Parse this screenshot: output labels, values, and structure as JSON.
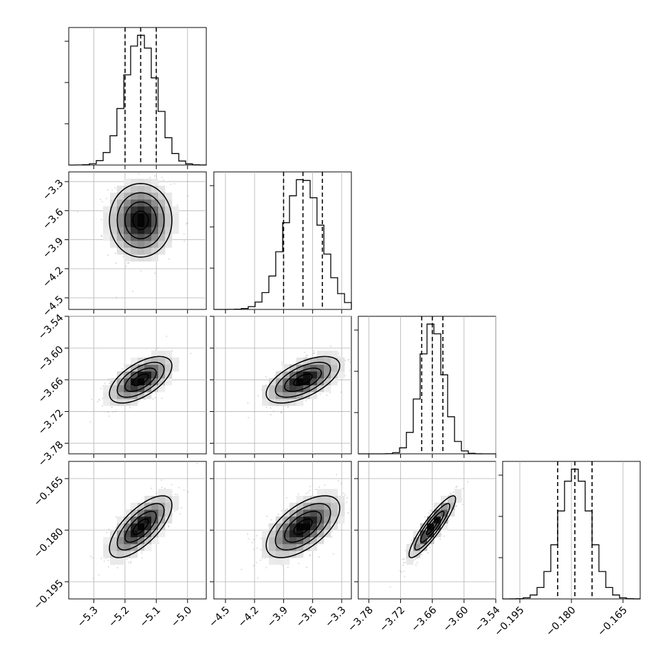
{
  "chart_data": {
    "type": "corner",
    "title": "",
    "grid": true,
    "parameters": [
      {
        "index": 0,
        "mean": -5.15,
        "sd": 0.05,
        "range": [
          -5.38,
          -4.94
        ],
        "ticks": [
          -5.3,
          -5.2,
          -5.1,
          -5.0
        ],
        "tick_labels": [
          "−5.3",
          "−5.2",
          "−5.1",
          "−5.0"
        ],
        "quantiles": [
          -5.2,
          -5.15,
          -5.1
        ]
      },
      {
        "index": 1,
        "mean": -3.7,
        "sd": 0.19,
        "range": [
          -4.62,
          -3.2
        ],
        "ticks": [
          -4.5,
          -4.2,
          -3.9,
          -3.6,
          -3.3
        ],
        "tick_labels": [
          "−4.5",
          "−4.2",
          "−3.9",
          "−3.6",
          "−3.3"
        ],
        "quantiles": [
          -3.9,
          -3.7,
          -3.5
        ]
      },
      {
        "index": 2,
        "mean": -3.66,
        "sd": 0.022,
        "range": [
          -3.8,
          -3.54
        ],
        "ticks": [
          -3.78,
          -3.72,
          -3.66,
          -3.6,
          -3.54
        ],
        "tick_labels": [
          "−3.78",
          "−3.72",
          "−3.66",
          "−3.60",
          "−3.54"
        ],
        "quantiles": [
          -3.68,
          -3.66,
          -3.64
        ]
      },
      {
        "index": 3,
        "mean": -0.179,
        "sd": 0.0045,
        "range": [
          -0.2,
          -0.16
        ],
        "ticks": [
          -0.195,
          -0.18,
          -0.165
        ],
        "tick_labels": [
          "−0.195",
          "−0.180",
          "−0.165"
        ],
        "quantiles": [
          -0.184,
          -0.179,
          -0.174
        ]
      }
    ],
    "correlations": {
      "1-0": 0.0,
      "2-0": 0.6,
      "2-1": 0.6,
      "3-0": 0.7,
      "3-1": 0.6,
      "3-2": 0.9
    },
    "histogram_bins": 20,
    "contour_levels_sigma": [
      0.5,
      1.0,
      1.5,
      2.0
    ],
    "colors": {
      "line": "#000000",
      "scatter": "#8a8a8a",
      "grid": "#b0b0b0",
      "background": "#ffffff"
    }
  }
}
